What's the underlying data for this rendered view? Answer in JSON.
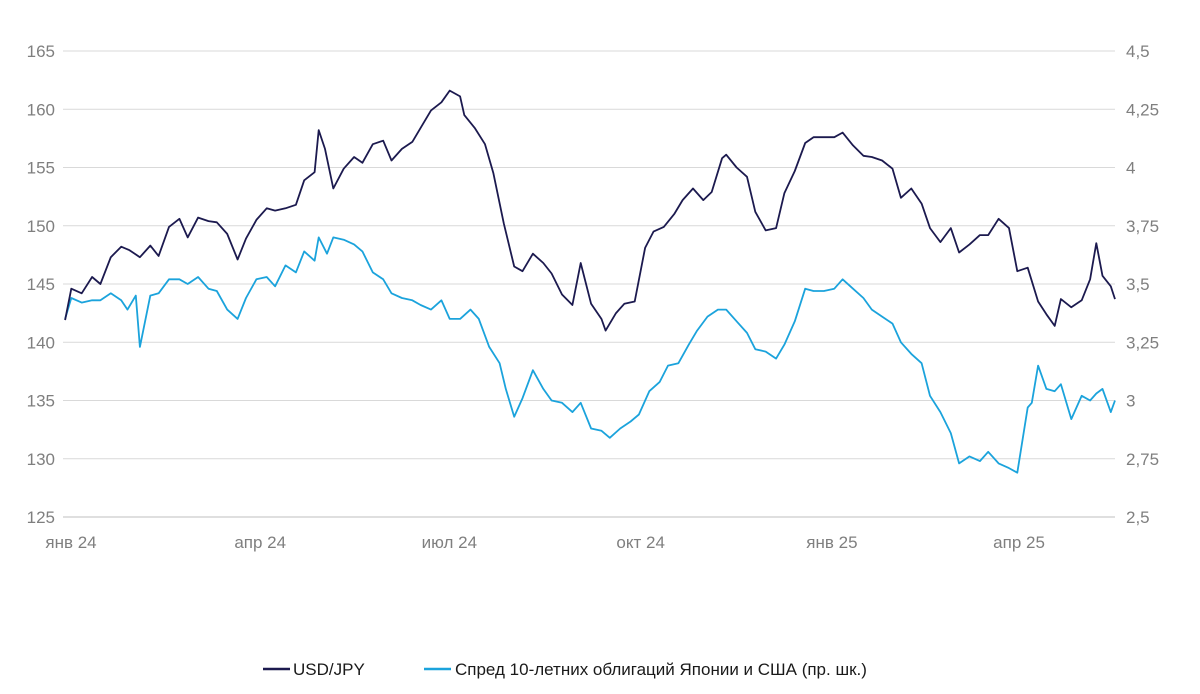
{
  "chart_data": {
    "type": "line",
    "x_range": [
      "2024-01-01",
      "2025-05-21"
    ],
    "x_ticks": [
      {
        "date": "2024-01-01",
        "label": "янв 24"
      },
      {
        "date": "2024-04-01",
        "label": "апр 24"
      },
      {
        "date": "2024-07-01",
        "label": "июл 24"
      },
      {
        "date": "2024-10-01",
        "label": "окт 24"
      },
      {
        "date": "2025-01-01",
        "label": "янв 25"
      },
      {
        "date": "2025-04-01",
        "label": "апр 25"
      }
    ],
    "y_left": {
      "min": 125,
      "max": 165,
      "ticks": [
        125,
        130,
        135,
        140,
        145,
        150,
        155,
        160,
        165
      ],
      "labels": [
        "125",
        "130",
        "135",
        "140",
        "145",
        "150",
        "155",
        "160",
        "165"
      ]
    },
    "y_right": {
      "min": 2.5,
      "max": 4.5,
      "ticks": [
        2.5,
        2.75,
        3,
        3.25,
        3.5,
        3.75,
        4,
        4.25,
        4.5
      ],
      "labels": [
        "2,5",
        "2,75",
        "3",
        "3,25",
        "3,5",
        "3,75",
        "4",
        "4,25",
        "4,5"
      ]
    },
    "grid": "horizontal",
    "legend_position": "bottom",
    "series": [
      {
        "name": "USD/JPY",
        "axis": "left",
        "color": "#1c1a4f",
        "points": [
          [
            "2024-01-02",
            141.9
          ],
          [
            "2024-01-05",
            144.6
          ],
          [
            "2024-01-10",
            144.2
          ],
          [
            "2024-01-15",
            145.6
          ],
          [
            "2024-01-19",
            145.0
          ],
          [
            "2024-01-24",
            147.3
          ],
          [
            "2024-01-29",
            148.2
          ],
          [
            "2024-02-02",
            147.9
          ],
          [
            "2024-02-07",
            147.3
          ],
          [
            "2024-02-12",
            148.3
          ],
          [
            "2024-02-16",
            147.4
          ],
          [
            "2024-02-21",
            149.9
          ],
          [
            "2024-02-26",
            150.6
          ],
          [
            "2024-03-01",
            149.0
          ],
          [
            "2024-03-06",
            150.7
          ],
          [
            "2024-03-11",
            150.4
          ],
          [
            "2024-03-15",
            150.3
          ],
          [
            "2024-03-20",
            149.3
          ],
          [
            "2024-03-25",
            147.1
          ],
          [
            "2024-03-29",
            148.9
          ],
          [
            "2024-04-03",
            150.5
          ],
          [
            "2024-04-08",
            151.5
          ],
          [
            "2024-04-12",
            151.3
          ],
          [
            "2024-04-17",
            151.5
          ],
          [
            "2024-04-22",
            151.8
          ],
          [
            "2024-04-26",
            153.9
          ],
          [
            "2024-05-01",
            154.6
          ],
          [
            "2024-05-03",
            158.2
          ],
          [
            "2024-05-06",
            156.6
          ],
          [
            "2024-05-10",
            153.2
          ],
          [
            "2024-05-15",
            154.9
          ],
          [
            "2024-05-20",
            155.9
          ],
          [
            "2024-05-24",
            155.4
          ],
          [
            "2024-05-29",
            157.0
          ],
          [
            "2024-06-03",
            157.3
          ],
          [
            "2024-06-07",
            155.6
          ],
          [
            "2024-06-12",
            156.6
          ],
          [
            "2024-06-17",
            157.2
          ],
          [
            "2024-06-21",
            158.4
          ],
          [
            "2024-06-26",
            159.9
          ],
          [
            "2024-07-01",
            160.6
          ],
          [
            "2024-07-05",
            161.6
          ],
          [
            "2024-07-10",
            161.1
          ],
          [
            "2024-07-12",
            159.5
          ],
          [
            "2024-07-17",
            158.4
          ],
          [
            "2024-07-22",
            157.0
          ],
          [
            "2024-07-26",
            154.5
          ],
          [
            "2024-07-31",
            150.2
          ],
          [
            "2024-08-05",
            146.5
          ],
          [
            "2024-08-09",
            146.1
          ],
          [
            "2024-08-14",
            147.6
          ],
          [
            "2024-08-19",
            146.8
          ],
          [
            "2024-08-23",
            145.9
          ],
          [
            "2024-08-28",
            144.1
          ],
          [
            "2024-09-02",
            143.2
          ],
          [
            "2024-09-06",
            146.8
          ],
          [
            "2024-09-11",
            143.3
          ],
          [
            "2024-09-16",
            142.0
          ],
          [
            "2024-09-18",
            141.0
          ],
          [
            "2024-09-23",
            142.5
          ],
          [
            "2024-09-27",
            143.3
          ],
          [
            "2024-10-02",
            143.5
          ],
          [
            "2024-10-07",
            148.1
          ],
          [
            "2024-10-11",
            149.5
          ],
          [
            "2024-10-16",
            149.9
          ],
          [
            "2024-10-21",
            151.0
          ],
          [
            "2024-10-25",
            152.2
          ],
          [
            "2024-10-30",
            153.2
          ],
          [
            "2024-11-04",
            152.2
          ],
          [
            "2024-11-08",
            152.9
          ],
          [
            "2024-11-13",
            155.8
          ],
          [
            "2024-11-15",
            156.1
          ],
          [
            "2024-11-20",
            155.0
          ],
          [
            "2024-11-25",
            154.2
          ],
          [
            "2024-11-29",
            151.2
          ],
          [
            "2024-12-04",
            149.6
          ],
          [
            "2024-12-09",
            149.8
          ],
          [
            "2024-12-13",
            152.8
          ],
          [
            "2024-12-18",
            154.7
          ],
          [
            "2024-12-23",
            157.1
          ],
          [
            "2024-12-27",
            157.6
          ],
          [
            "2025-01-01",
            157.6
          ],
          [
            "2025-01-06",
            157.6
          ],
          [
            "2025-01-10",
            158.0
          ],
          [
            "2025-01-15",
            156.9
          ],
          [
            "2025-01-20",
            156.0
          ],
          [
            "2025-01-24",
            155.9
          ],
          [
            "2025-01-29",
            155.6
          ],
          [
            "2025-02-03",
            154.9
          ],
          [
            "2025-02-07",
            152.4
          ],
          [
            "2025-02-12",
            153.2
          ],
          [
            "2025-02-17",
            151.9
          ],
          [
            "2025-02-21",
            149.8
          ],
          [
            "2025-02-26",
            148.6
          ],
          [
            "2025-03-03",
            149.8
          ],
          [
            "2025-03-07",
            147.7
          ],
          [
            "2025-03-12",
            148.4
          ],
          [
            "2025-03-17",
            149.2
          ],
          [
            "2025-03-21",
            149.2
          ],
          [
            "2025-03-26",
            150.6
          ],
          [
            "2025-03-31",
            149.8
          ],
          [
            "2025-04-04",
            146.1
          ],
          [
            "2025-04-09",
            146.4
          ],
          [
            "2025-04-14",
            143.5
          ],
          [
            "2025-04-18",
            142.4
          ],
          [
            "2025-04-22",
            141.4
          ],
          [
            "2025-04-25",
            143.7
          ],
          [
            "2025-04-30",
            143.0
          ],
          [
            "2025-05-05",
            143.6
          ],
          [
            "2025-05-09",
            145.4
          ],
          [
            "2025-05-12",
            148.5
          ],
          [
            "2025-05-15",
            145.7
          ],
          [
            "2025-05-19",
            144.8
          ],
          [
            "2025-05-21",
            143.7
          ]
        ]
      },
      {
        "name": "Спред 10-летних облигаций Японии и США (пр. шк.)",
        "axis": "right",
        "color": "#1ba3dc",
        "points": [
          [
            "2024-01-02",
            3.35
          ],
          [
            "2024-01-05",
            3.44
          ],
          [
            "2024-01-10",
            3.42
          ],
          [
            "2024-01-15",
            3.43
          ],
          [
            "2024-01-19",
            3.43
          ],
          [
            "2024-01-24",
            3.46
          ],
          [
            "2024-01-29",
            3.43
          ],
          [
            "2024-02-01",
            3.39
          ],
          [
            "2024-02-05",
            3.45
          ],
          [
            "2024-02-07",
            3.23
          ],
          [
            "2024-02-12",
            3.45
          ],
          [
            "2024-02-16",
            3.46
          ],
          [
            "2024-02-21",
            3.52
          ],
          [
            "2024-02-26",
            3.52
          ],
          [
            "2024-03-01",
            3.5
          ],
          [
            "2024-03-06",
            3.53
          ],
          [
            "2024-03-11",
            3.48
          ],
          [
            "2024-03-15",
            3.47
          ],
          [
            "2024-03-20",
            3.39
          ],
          [
            "2024-03-25",
            3.35
          ],
          [
            "2024-03-29",
            3.44
          ],
          [
            "2024-04-03",
            3.52
          ],
          [
            "2024-04-08",
            3.53
          ],
          [
            "2024-04-12",
            3.49
          ],
          [
            "2024-04-17",
            3.58
          ],
          [
            "2024-04-22",
            3.55
          ],
          [
            "2024-04-26",
            3.64
          ],
          [
            "2024-05-01",
            3.6
          ],
          [
            "2024-05-03",
            3.7
          ],
          [
            "2024-05-07",
            3.63
          ],
          [
            "2024-05-10",
            3.7
          ],
          [
            "2024-05-15",
            3.69
          ],
          [
            "2024-05-20",
            3.67
          ],
          [
            "2024-05-24",
            3.64
          ],
          [
            "2024-05-29",
            3.55
          ],
          [
            "2024-06-03",
            3.52
          ],
          [
            "2024-06-07",
            3.46
          ],
          [
            "2024-06-12",
            3.44
          ],
          [
            "2024-06-17",
            3.43
          ],
          [
            "2024-06-21",
            3.41
          ],
          [
            "2024-06-26",
            3.39
          ],
          [
            "2024-07-01",
            3.43
          ],
          [
            "2024-07-05",
            3.35
          ],
          [
            "2024-07-10",
            3.35
          ],
          [
            "2024-07-15",
            3.39
          ],
          [
            "2024-07-19",
            3.35
          ],
          [
            "2024-07-24",
            3.23
          ],
          [
            "2024-07-29",
            3.16
          ],
          [
            "2024-08-01",
            3.05
          ],
          [
            "2024-08-05",
            2.93
          ],
          [
            "2024-08-09",
            3.01
          ],
          [
            "2024-08-14",
            3.13
          ],
          [
            "2024-08-19",
            3.05
          ],
          [
            "2024-08-23",
            3.0
          ],
          [
            "2024-08-28",
            2.99
          ],
          [
            "2024-09-02",
            2.95
          ],
          [
            "2024-09-06",
            2.99
          ],
          [
            "2024-09-11",
            2.88
          ],
          [
            "2024-09-16",
            2.87
          ],
          [
            "2024-09-20",
            2.84
          ],
          [
            "2024-09-25",
            2.88
          ],
          [
            "2024-09-30",
            2.91
          ],
          [
            "2024-10-04",
            2.94
          ],
          [
            "2024-10-09",
            3.04
          ],
          [
            "2024-10-14",
            3.08
          ],
          [
            "2024-10-18",
            3.15
          ],
          [
            "2024-10-23",
            3.16
          ],
          [
            "2024-10-28",
            3.24
          ],
          [
            "2024-11-01",
            3.3
          ],
          [
            "2024-11-06",
            3.36
          ],
          [
            "2024-11-11",
            3.39
          ],
          [
            "2024-11-15",
            3.39
          ],
          [
            "2024-11-20",
            3.34
          ],
          [
            "2024-11-25",
            3.29
          ],
          [
            "2024-11-29",
            3.22
          ],
          [
            "2024-12-04",
            3.21
          ],
          [
            "2024-12-09",
            3.18
          ],
          [
            "2024-12-13",
            3.24
          ],
          [
            "2024-12-18",
            3.34
          ],
          [
            "2024-12-23",
            3.48
          ],
          [
            "2024-12-27",
            3.47
          ],
          [
            "2025-01-01",
            3.47
          ],
          [
            "2025-01-06",
            3.48
          ],
          [
            "2025-01-10",
            3.52
          ],
          [
            "2025-01-15",
            3.48
          ],
          [
            "2025-01-20",
            3.44
          ],
          [
            "2025-01-24",
            3.39
          ],
          [
            "2025-01-29",
            3.36
          ],
          [
            "2025-02-03",
            3.33
          ],
          [
            "2025-02-07",
            3.25
          ],
          [
            "2025-02-12",
            3.2
          ],
          [
            "2025-02-17",
            3.16
          ],
          [
            "2025-02-21",
            3.02
          ],
          [
            "2025-02-26",
            2.95
          ],
          [
            "2025-03-03",
            2.86
          ],
          [
            "2025-03-07",
            2.73
          ],
          [
            "2025-03-12",
            2.76
          ],
          [
            "2025-03-17",
            2.74
          ],
          [
            "2025-03-21",
            2.78
          ],
          [
            "2025-03-26",
            2.73
          ],
          [
            "2025-03-31",
            2.71
          ],
          [
            "2025-04-04",
            2.69
          ],
          [
            "2025-04-09",
            2.97
          ],
          [
            "2025-04-11",
            2.99
          ],
          [
            "2025-04-14",
            3.15
          ],
          [
            "2025-04-18",
            3.05
          ],
          [
            "2025-04-22",
            3.04
          ],
          [
            "2025-04-25",
            3.07
          ],
          [
            "2025-04-30",
            2.92
          ],
          [
            "2025-05-05",
            3.02
          ],
          [
            "2025-05-09",
            3.0
          ],
          [
            "2025-05-12",
            3.03
          ],
          [
            "2025-05-15",
            3.05
          ],
          [
            "2025-05-19",
            2.95
          ],
          [
            "2025-05-21",
            3.0
          ]
        ]
      }
    ]
  }
}
